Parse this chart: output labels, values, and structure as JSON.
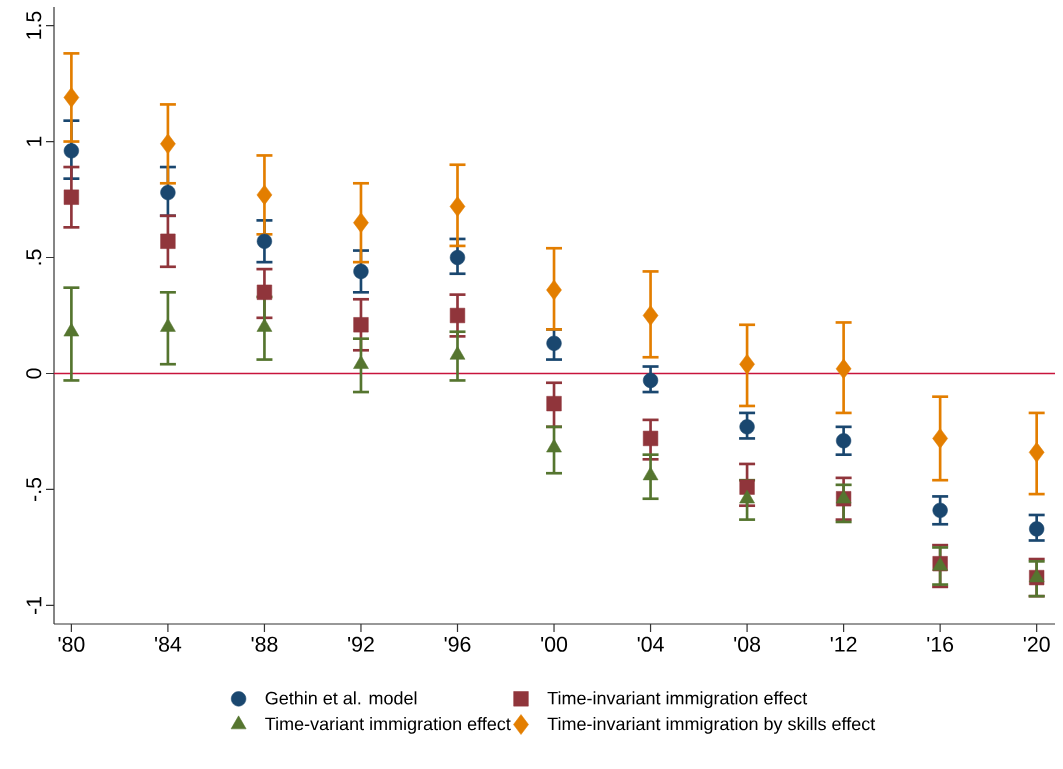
{
  "chart_data": {
    "type": "scatter",
    "categories": [
      "'80",
      "'84",
      "'88",
      "'92",
      "'96",
      "'00",
      "'04",
      "'08",
      "'12",
      "'16",
      "'20"
    ],
    "series": [
      {
        "name": "Gethin et al. model",
        "color": "#1a476f",
        "marker": "circle",
        "values": [
          0.96,
          0.78,
          0.57,
          0.44,
          0.5,
          0.13,
          -0.03,
          -0.23,
          -0.29,
          -0.59,
          -0.67
        ],
        "errors": [
          [
            0.84,
            1.09
          ],
          [
            0.68,
            0.89
          ],
          [
            0.48,
            0.66
          ],
          [
            0.35,
            0.53
          ],
          [
            0.43,
            0.58
          ],
          [
            0.06,
            0.19
          ],
          [
            -0.08,
            0.03
          ],
          [
            -0.28,
            -0.17
          ],
          [
            -0.35,
            -0.23
          ],
          [
            -0.65,
            -0.53
          ],
          [
            -0.72,
            -0.61
          ]
        ]
      },
      {
        "name": "Time-invariant immigration effect",
        "color": "#90353b",
        "marker": "square",
        "values": [
          0.76,
          0.57,
          0.35,
          0.21,
          0.25,
          -0.13,
          -0.28,
          -0.49,
          -0.54,
          -0.82,
          -0.88
        ],
        "errors": [
          [
            0.63,
            0.89
          ],
          [
            0.46,
            0.68
          ],
          [
            0.24,
            0.45
          ],
          [
            0.1,
            0.32
          ],
          [
            0.16,
            0.34
          ],
          [
            -0.23,
            -0.04
          ],
          [
            -0.37,
            -0.2
          ],
          [
            -0.57,
            -0.39
          ],
          [
            -0.63,
            -0.45
          ],
          [
            -0.92,
            -0.74
          ],
          [
            -0.96,
            -0.8
          ]
        ]
      },
      {
        "name": "Time-variant immigration effect",
        "color": "#55752f",
        "marker": "triangle",
        "values": [
          0.18,
          0.2,
          0.2,
          0.04,
          0.08,
          -0.32,
          -0.44,
          -0.54,
          -0.54,
          -0.83,
          -0.88
        ],
        "errors": [
          [
            -0.03,
            0.37
          ],
          [
            0.04,
            0.35
          ],
          [
            0.06,
            0.33
          ],
          [
            -0.08,
            0.15
          ],
          [
            -0.03,
            0.18
          ],
          [
            -0.43,
            -0.23
          ],
          [
            -0.54,
            -0.35
          ],
          [
            -0.63,
            -0.46
          ],
          [
            -0.64,
            -0.48
          ],
          [
            -0.91,
            -0.75
          ],
          [
            -0.96,
            -0.81
          ]
        ]
      },
      {
        "name": "Time-invariant immigration by skills effect",
        "color": "#e37e00",
        "marker": "diamond",
        "values": [
          1.19,
          0.99,
          0.77,
          0.65,
          0.72,
          0.36,
          0.25,
          0.04,
          0.02,
          -0.28,
          -0.34
        ],
        "errors": [
          [
            1.0,
            1.38
          ],
          [
            0.82,
            1.16
          ],
          [
            0.6,
            0.94
          ],
          [
            0.48,
            0.82
          ],
          [
            0.55,
            0.9
          ],
          [
            0.19,
            0.54
          ],
          [
            0.07,
            0.44
          ],
          [
            -0.14,
            0.21
          ],
          [
            -0.17,
            0.22
          ],
          [
            -0.46,
            -0.1
          ],
          [
            -0.52,
            -0.17
          ]
        ]
      }
    ],
    "ylim": [
      -1.08,
      1.58
    ],
    "yticks": [
      {
        "value": -1,
        "label": "-1"
      },
      {
        "value": -0.5,
        "label": "-.5"
      },
      {
        "value": 0,
        "label": "0"
      },
      {
        "value": 0.5,
        "label": ".5"
      },
      {
        "value": 1,
        "label": "1"
      },
      {
        "value": 1.5,
        "label": "1.5"
      }
    ],
    "ref_lines": [
      {
        "axis": "y",
        "value": 0,
        "color": "#c8143c"
      }
    ],
    "grid": false,
    "legend": "bottom"
  }
}
